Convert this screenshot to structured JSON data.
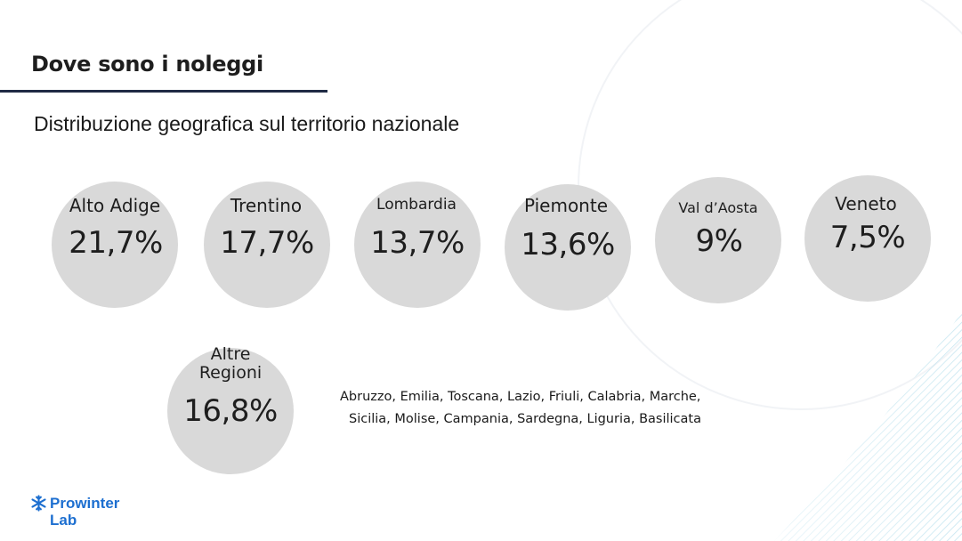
{
  "title": "Dove sono i noleggi",
  "subtitle": "Distribuzione geografica sul territorio nazionale",
  "regions": [
    {
      "name": "Alto Adige",
      "percent": "21,7%"
    },
    {
      "name": "Trentino",
      "percent": "17,7%"
    },
    {
      "name": "Lombardia",
      "percent": "13,7%"
    },
    {
      "name": "Piemonte",
      "percent": "13,6%"
    },
    {
      "name": "Val d’Aosta",
      "percent": "9%"
    },
    {
      "name": "Veneto",
      "percent": "7,5%"
    }
  ],
  "other": {
    "name_line1": "Altre",
    "name_line2": "Regioni",
    "percent": "16,8%",
    "list_line1": "Abruzzo, Emilia, Toscana, Lazio, Friuli, Calabria, Marche,",
    "list_line2": "Sicilia, Molise, Campania, Sardegna, Liguria, Basilicata"
  },
  "logo": {
    "name": "Prowinter",
    "sub": "Lab",
    "icon": "snowflake-icon"
  },
  "colors": {
    "bubble": "#d9d9d9",
    "accent": "#1d6fd0",
    "rule": "#1f2a44"
  }
}
